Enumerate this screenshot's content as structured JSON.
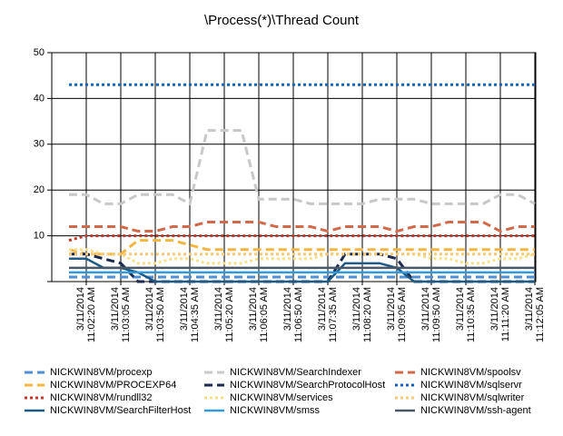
{
  "chart_data": {
    "type": "line",
    "title": "\\Process(*)\\Thread Count",
    "categories": [
      null,
      "3/11/2014 11:02:20 AM",
      null,
      "3/11/2014 11:03:05 AM",
      null,
      "3/11/2014 11:03:50 AM",
      null,
      "3/11/2014 11:04:35 AM",
      null,
      "3/11/2014 11:05:20 AM",
      null,
      "3/11/2014 11:06:05 AM",
      null,
      "3/11/2014 11:06:50 AM",
      null,
      "3/11/2014 11:07:35 AM",
      null,
      "3/11/2014 11:08:20 AM",
      null,
      "3/11/2014 11:09:05 AM",
      null,
      "3/11/2014 11:09:50 AM",
      null,
      "3/11/2014 11:10:35 AM",
      null,
      "3/11/2014 11:11:20 AM",
      null,
      "3/11/2014 11:12:05 AM"
    ],
    "ylim": [
      0,
      50
    ],
    "yticks": [
      10,
      20,
      30,
      40,
      50
    ],
    "grid": true,
    "series": [
      {
        "name": "NICKWIN8VM/procexp",
        "color": "#4e8fd6",
        "dash": "dashed",
        "values": [
          1,
          1,
          1,
          1,
          1,
          1,
          1,
          1,
          1,
          1,
          1,
          1,
          1,
          1,
          1,
          1,
          1,
          1,
          1,
          1,
          1,
          1,
          1,
          1,
          1,
          1,
          1,
          1
        ]
      },
      {
        "name": "NICKWIN8VM/SearchIndexer",
        "color": "#c8c8c8",
        "dash": "dashed",
        "values": [
          19,
          19,
          17,
          17,
          19,
          19,
          19,
          17,
          33,
          33,
          33,
          18,
          18,
          18,
          17,
          17,
          17,
          17,
          18,
          18,
          18,
          17,
          17,
          17,
          17,
          19,
          19,
          17
        ]
      },
      {
        "name": "NICKWIN8VM/spoolsv",
        "color": "#d2694a",
        "dash": "dashed",
        "values": [
          12,
          12,
          12,
          12,
          11,
          11,
          12,
          12,
          13,
          13,
          13,
          13,
          12,
          12,
          12,
          11,
          12,
          12,
          12,
          11,
          12,
          12,
          13,
          13,
          13,
          11,
          12,
          12
        ]
      },
      {
        "name": "NICKWIN8VM/PROCEXP64",
        "color": "#f4b642",
        "dash": "dashed",
        "values": [
          7,
          6,
          6,
          6,
          9,
          9,
          9,
          8,
          7,
          7,
          7,
          7,
          7,
          7,
          7,
          7,
          7,
          7,
          7,
          7,
          7,
          7,
          7,
          7,
          7,
          7,
          7,
          7
        ]
      },
      {
        "name": "NICKWIN8VM/SearchProtocolHost",
        "color": "#1b2a4e",
        "dash": "dashed",
        "values": [
          6,
          6,
          5,
          4,
          0,
          0,
          0,
          0,
          0,
          0,
          0,
          0,
          0,
          0,
          0,
          0,
          6,
          6,
          6,
          5,
          0,
          0,
          0,
          0,
          0,
          0,
          0,
          0
        ]
      },
      {
        "name": "NICKWIN8VM/sqlservr",
        "color": "#1565c0",
        "dash": "dotted",
        "values": [
          43,
          43,
          43,
          43,
          43,
          43,
          43,
          43,
          43,
          43,
          43,
          43,
          43,
          43,
          43,
          43,
          43,
          43,
          43,
          43,
          43,
          43,
          43,
          43,
          43,
          43,
          43,
          43
        ]
      },
      {
        "name": "NICKWIN8VM/rundll32",
        "color": "#c0392b",
        "dash": "dotted",
        "values": [
          9,
          10,
          10,
          10,
          10,
          10,
          10,
          10,
          10,
          10,
          10,
          10,
          10,
          10,
          10,
          10,
          10,
          10,
          10,
          10,
          10,
          10,
          10,
          10,
          10,
          10,
          10,
          10
        ]
      },
      {
        "name": "NICKWIN8VM/services",
        "color": "#f7e08c",
        "dash": "dotted",
        "values": [
          7,
          7,
          6,
          6,
          4,
          4,
          5,
          5,
          4,
          4,
          4,
          5,
          5,
          5,
          5,
          6,
          6,
          6,
          6,
          6,
          6,
          5,
          5,
          4,
          4,
          5,
          5,
          6
        ]
      },
      {
        "name": "NICKWIN8VM/sqlwriter",
        "color": "#f8c97a",
        "dash": "dotted",
        "values": [
          6,
          6,
          6,
          6,
          6,
          6,
          6,
          6,
          6,
          6,
          6,
          6,
          6,
          6,
          6,
          6,
          6,
          6,
          6,
          6,
          6,
          6,
          6,
          6,
          6,
          6,
          6,
          6
        ]
      },
      {
        "name": "NICKWIN8VM/SearchFilterHost",
        "color": "#1d5a85",
        "dash": "solid",
        "values": [
          5,
          5,
          3,
          3,
          2,
          0,
          0,
          0,
          0,
          0,
          0,
          0,
          0,
          0,
          0,
          0,
          4,
          4,
          4,
          3,
          0,
          0,
          0,
          0,
          0,
          0,
          0,
          0
        ]
      },
      {
        "name": "NICKWIN8VM/smss",
        "color": "#3399dd",
        "dash": "solid",
        "values": [
          2,
          2,
          2,
          2,
          2,
          2,
          2,
          2,
          2,
          2,
          2,
          2,
          2,
          2,
          2,
          2,
          2,
          2,
          2,
          2,
          2,
          2,
          2,
          2,
          2,
          2,
          2,
          2
        ]
      },
      {
        "name": "NICKWIN8VM/ssh-agent",
        "color": "#4a5868",
        "dash": "solid",
        "values": [
          3,
          3,
          3,
          3,
          3,
          3,
          3,
          3,
          3,
          3,
          3,
          3,
          3,
          3,
          3,
          3,
          3,
          3,
          3,
          3,
          3,
          3,
          3,
          3,
          3,
          3,
          3,
          3
        ]
      }
    ]
  }
}
